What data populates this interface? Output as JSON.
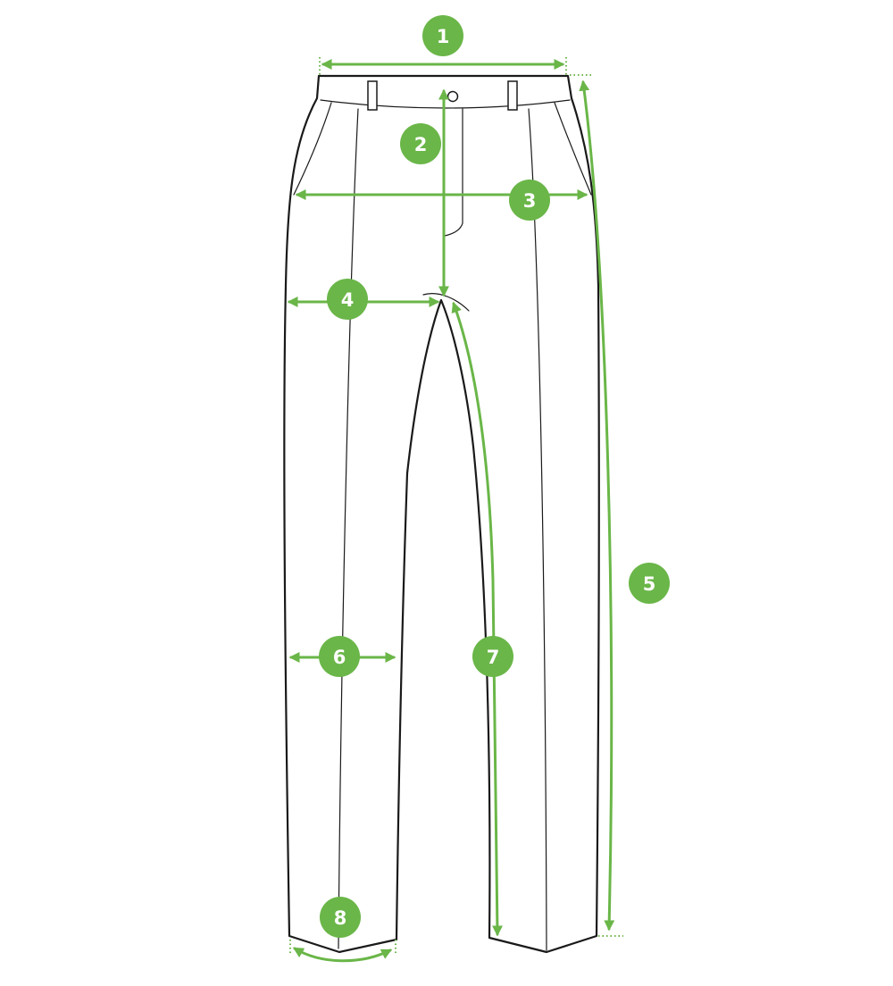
{
  "accent_color": "#6ab648",
  "outline_color": "#1a1a1a",
  "garment": "trousers",
  "measurements": [
    {
      "label": "1"
    },
    {
      "label": "2"
    },
    {
      "label": "3"
    },
    {
      "label": "4"
    },
    {
      "label": "5"
    },
    {
      "label": "6"
    },
    {
      "label": "7"
    },
    {
      "label": "8"
    }
  ]
}
